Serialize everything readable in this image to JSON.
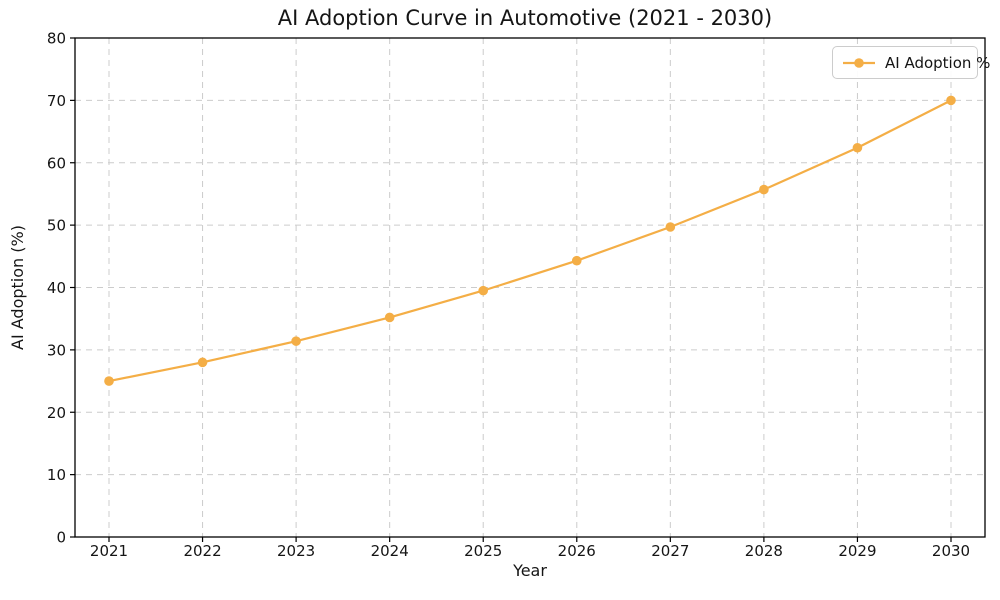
{
  "chart_data": {
    "type": "line",
    "title": "AI Adoption Curve in Automotive (2021 - 2030)",
    "xlabel": "Year",
    "ylabel": "AI Adoption (%)",
    "x": [
      2021,
      2022,
      2023,
      2024,
      2025,
      2026,
      2027,
      2028,
      2029,
      2030
    ],
    "series": [
      {
        "name": "AI Adoption %",
        "values": [
          25.0,
          28.0,
          31.4,
          35.2,
          39.5,
          44.3,
          49.7,
          55.7,
          62.4,
          70.0
        ],
        "color": "#F4AE46",
        "marker": "circle",
        "line_width": 2.2,
        "marker_radius": 4.8
      }
    ],
    "ylim": [
      0,
      80
    ],
    "yticks": [
      0,
      10,
      20,
      30,
      40,
      50,
      60,
      70,
      80
    ],
    "grid": {
      "visible": true,
      "style": "dashed",
      "color": "#cccccc"
    },
    "legend_position": "upper right",
    "spine_color": "#000000",
    "background": "#ffffff"
  }
}
